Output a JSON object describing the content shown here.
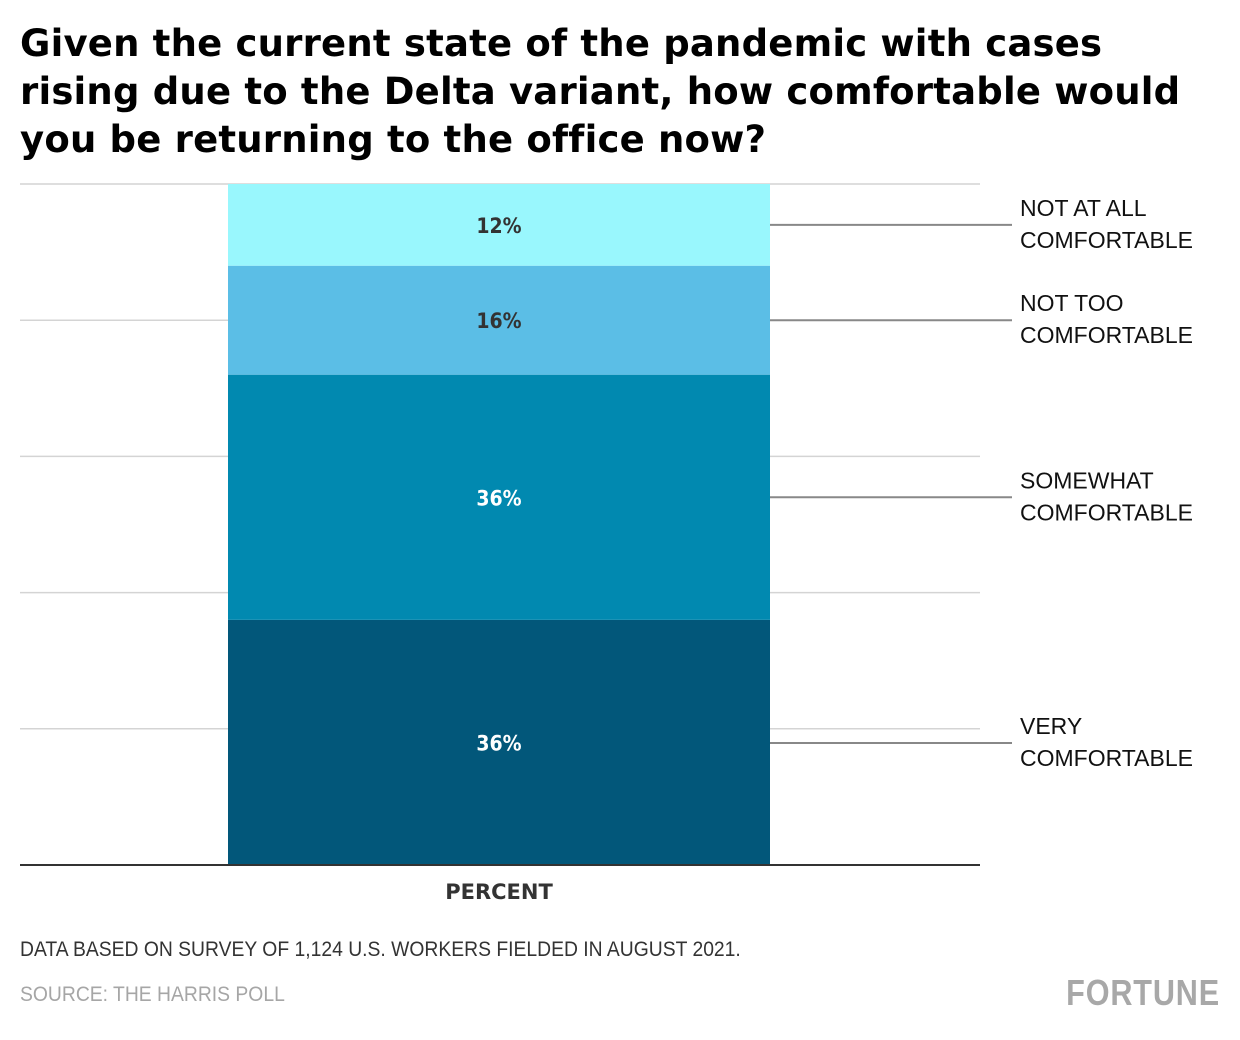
{
  "title": "Given the current state of the pandemic with cases rising due to the Delta variant, how comfortable would you be returning to the office now?",
  "footer": {
    "note": "DATA BASED ON SURVEY OF 1,124 U.S. WORKERS FIELDED IN AUGUST 2021.",
    "source": "SOURCE: THE HARRIS POLL",
    "logo": "FORTUNE"
  },
  "chart_data": {
    "type": "bar",
    "stacked": true,
    "orientation": "vertical",
    "title": "Given the current state of the pandemic with cases rising due to the Delta variant, how comfortable would you be returning to the office now?",
    "xlabel": "PERCENT",
    "ylabel": "",
    "ylim": [
      0,
      100
    ],
    "grid": true,
    "legend": "right (direct labels)",
    "categories": [
      "PERCENT"
    ],
    "series": [
      {
        "name": "VERY COMFORTABLE",
        "label_lines": [
          "VERY",
          "COMFORTABLE"
        ],
        "values": [
          36
        ],
        "data_label": "36%",
        "color": "#02577a",
        "label_color": "#ffffff"
      },
      {
        "name": "SOMEWHAT COMFORTABLE",
        "label_lines": [
          "SOMEWHAT",
          "COMFORTABLE"
        ],
        "values": [
          36
        ],
        "data_label": "36%",
        "color": "#0189b0",
        "label_color": "#ffffff"
      },
      {
        "name": "NOT TOO COMFORTABLE",
        "label_lines": [
          "NOT TOO",
          "COMFORTABLE"
        ],
        "values": [
          16
        ],
        "data_label": "16%",
        "color": "#5bbee6",
        "label_color": "#333333"
      },
      {
        "name": "NOT AT ALL COMFORTABLE",
        "label_lines": [
          "NOT AT ALL",
          "COMFORTABLE"
        ],
        "values": [
          12
        ],
        "data_label": "12%",
        "color": "#99f7fd",
        "label_color": "#333333"
      }
    ]
  }
}
